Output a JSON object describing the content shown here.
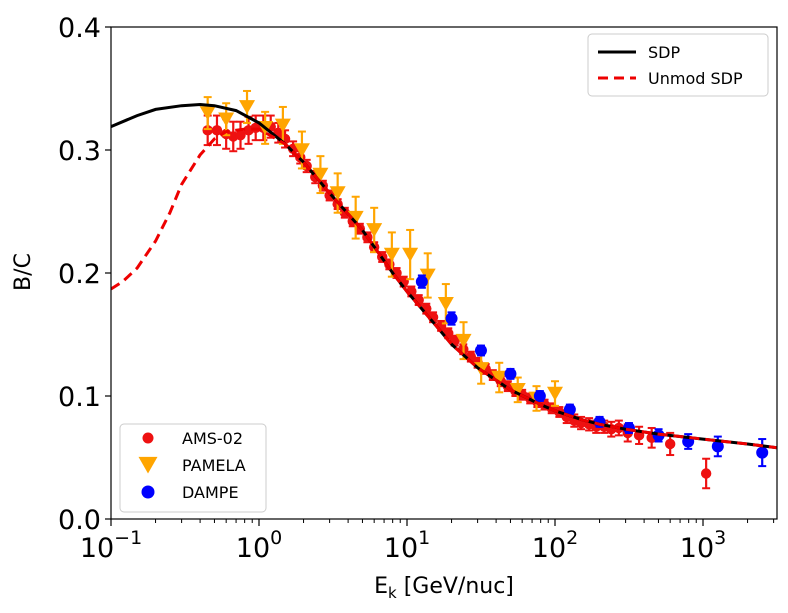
{
  "chart_data": {
    "type": "scatter",
    "xscale": "log",
    "xlim": [
      0.1,
      3162
    ],
    "ylim": [
      0.0,
      0.4
    ],
    "xlabel_main": "E",
    "xlabel_sub": "k",
    "xlabel_rest": " [GeV/nuc]",
    "ylabel": "B/C",
    "y_ticks": [
      {
        "value": 0.0,
        "label": "0.0"
      },
      {
        "value": 0.1,
        "label": "0.1"
      },
      {
        "value": 0.2,
        "label": "0.2"
      },
      {
        "value": 0.3,
        "label": "0.3"
      },
      {
        "value": 0.4,
        "label": "0.4"
      }
    ],
    "x_ticks": [
      {
        "value": 0.1,
        "base": "10",
        "exp": "−1"
      },
      {
        "value": 1,
        "base": "10",
        "exp": "0"
      },
      {
        "value": 10,
        "base": "10",
        "exp": "1"
      },
      {
        "value": 100,
        "base": "10",
        "exp": "2"
      },
      {
        "value": 1000,
        "base": "10",
        "exp": "3"
      }
    ],
    "lines": [
      {
        "name": "SDP",
        "color": "#000000",
        "dash": "none",
        "x": [
          0.1,
          0.15,
          0.2,
          0.3,
          0.4,
          0.5,
          0.7,
          1.0,
          1.5,
          2,
          3,
          5,
          8,
          10,
          15,
          20,
          30,
          50,
          80,
          100,
          150,
          200,
          300,
          500,
          1000,
          2000,
          3162
        ],
        "y": [
          0.319,
          0.328,
          0.333,
          0.336,
          0.337,
          0.336,
          0.332,
          0.322,
          0.305,
          0.29,
          0.265,
          0.235,
          0.2,
          0.185,
          0.16,
          0.142,
          0.123,
          0.105,
          0.093,
          0.088,
          0.081,
          0.077,
          0.073,
          0.069,
          0.065,
          0.061,
          0.058
        ]
      },
      {
        "name": "Unmod SDP",
        "color": "#ee0000",
        "dash": "10,6",
        "x": [
          0.1,
          0.12,
          0.15,
          0.2,
          0.25,
          0.3,
          0.4,
          0.5,
          0.6,
          0.8,
          1.0,
          1.5,
          2,
          3,
          5,
          8,
          10,
          15,
          20,
          30,
          50,
          80,
          100,
          150,
          200,
          300,
          500,
          1000,
          2000,
          3162
        ],
        "y": [
          0.187,
          0.193,
          0.204,
          0.226,
          0.249,
          0.272,
          0.296,
          0.309,
          0.315,
          0.317,
          0.317,
          0.305,
          0.29,
          0.265,
          0.235,
          0.2,
          0.185,
          0.16,
          0.142,
          0.123,
          0.105,
          0.093,
          0.088,
          0.081,
          0.077,
          0.073,
          0.069,
          0.065,
          0.061,
          0.058
        ]
      }
    ],
    "series": [
      {
        "name": "AMS-02",
        "color": "#ee1111",
        "marker": "circle",
        "x": [
          0.45,
          0.52,
          0.6,
          0.67,
          0.75,
          0.85,
          0.95,
          1.07,
          1.2,
          1.35,
          1.5,
          1.7,
          1.9,
          2.1,
          2.4,
          2.7,
          3.0,
          3.4,
          3.8,
          4.3,
          4.8,
          5.4,
          6.0,
          6.8,
          7.6,
          8.5,
          9.5,
          10.7,
          12,
          13.5,
          15,
          17,
          19,
          21,
          24,
          27,
          30,
          34,
          38,
          43,
          48,
          54,
          60,
          68,
          76,
          85,
          95,
          107,
          120,
          135,
          150,
          170,
          190,
          215,
          240,
          270,
          310,
          370,
          450,
          600,
          1050
        ],
        "y": [
          0.316,
          0.316,
          0.313,
          0.311,
          0.312,
          0.316,
          0.318,
          0.318,
          0.319,
          0.314,
          0.309,
          0.301,
          0.294,
          0.287,
          0.278,
          0.271,
          0.263,
          0.256,
          0.249,
          0.242,
          0.236,
          0.229,
          0.221,
          0.213,
          0.207,
          0.2,
          0.193,
          0.185,
          0.178,
          0.171,
          0.164,
          0.157,
          0.151,
          0.145,
          0.138,
          0.132,
          0.127,
          0.122,
          0.117,
          0.112,
          0.108,
          0.104,
          0.101,
          0.098,
          0.095,
          0.093,
          0.09,
          0.087,
          0.083,
          0.08,
          0.078,
          0.077,
          0.075,
          0.075,
          0.073,
          0.074,
          0.07,
          0.068,
          0.066,
          0.061,
          0.037
        ],
        "err": [
          0.012,
          0.012,
          0.012,
          0.012,
          0.011,
          0.011,
          0.01,
          0.01,
          0.009,
          0.008,
          0.007,
          0.006,
          0.005,
          0.005,
          0.005,
          0.004,
          0.004,
          0.004,
          0.004,
          0.004,
          0.004,
          0.004,
          0.004,
          0.004,
          0.004,
          0.004,
          0.004,
          0.004,
          0.004,
          0.004,
          0.004,
          0.004,
          0.004,
          0.004,
          0.004,
          0.004,
          0.004,
          0.004,
          0.004,
          0.004,
          0.004,
          0.004,
          0.004,
          0.004,
          0.004,
          0.004,
          0.004,
          0.004,
          0.005,
          0.005,
          0.005,
          0.005,
          0.005,
          0.005,
          0.006,
          0.006,
          0.007,
          0.007,
          0.008,
          0.009,
          0.012
        ]
      },
      {
        "name": "PAMELA",
        "color": "#ffa500",
        "marker": "triangle-down",
        "x": [
          0.45,
          0.6,
          0.83,
          1.1,
          1.45,
          1.95,
          2.6,
          3.4,
          4.5,
          6.0,
          7.9,
          10.5,
          13.8,
          18.3,
          24.1,
          31.7,
          42,
          56,
          75,
          100
        ],
        "y": [
          0.33,
          0.325,
          0.335,
          0.318,
          0.32,
          0.3,
          0.28,
          0.265,
          0.245,
          0.235,
          0.215,
          0.215,
          0.198,
          0.175,
          0.145,
          0.122,
          0.115,
          0.105,
          0.098,
          0.102
        ],
        "err": [
          0.013,
          0.013,
          0.013,
          0.013,
          0.015,
          0.015,
          0.015,
          0.016,
          0.017,
          0.018,
          0.018,
          0.02,
          0.018,
          0.016,
          0.015,
          0.012,
          0.012,
          0.01,
          0.01,
          0.01
        ]
      },
      {
        "name": "DAMPE",
        "color": "#0000ff",
        "marker": "circle",
        "x": [
          12.6,
          20,
          31.6,
          50,
          79,
          126,
          200,
          316,
          501,
          794,
          1259,
          2512
        ],
        "y": [
          0.193,
          0.163,
          0.137,
          0.118,
          0.1,
          0.089,
          0.079,
          0.074,
          0.068,
          0.063,
          0.059,
          0.054
        ],
        "err": [
          0.005,
          0.005,
          0.004,
          0.004,
          0.004,
          0.004,
          0.004,
          0.004,
          0.005,
          0.006,
          0.008,
          0.011
        ]
      }
    ],
    "legend_lines": [
      {
        "label": "SDP",
        "color": "#000000",
        "dash": "none"
      },
      {
        "label": "Unmod SDP",
        "color": "#ee0000",
        "dash": "10,6"
      }
    ],
    "legend_markers": [
      {
        "label": "AMS-02",
        "color": "#ee1111",
        "marker": "circle"
      },
      {
        "label": "PAMELA",
        "color": "#ffa500",
        "marker": "triangle-down"
      },
      {
        "label": "DAMPE",
        "color": "#0000ff",
        "marker": "circle"
      }
    ],
    "legend_lines_position": "top-right",
    "legend_markers_position": "bottom-left"
  }
}
